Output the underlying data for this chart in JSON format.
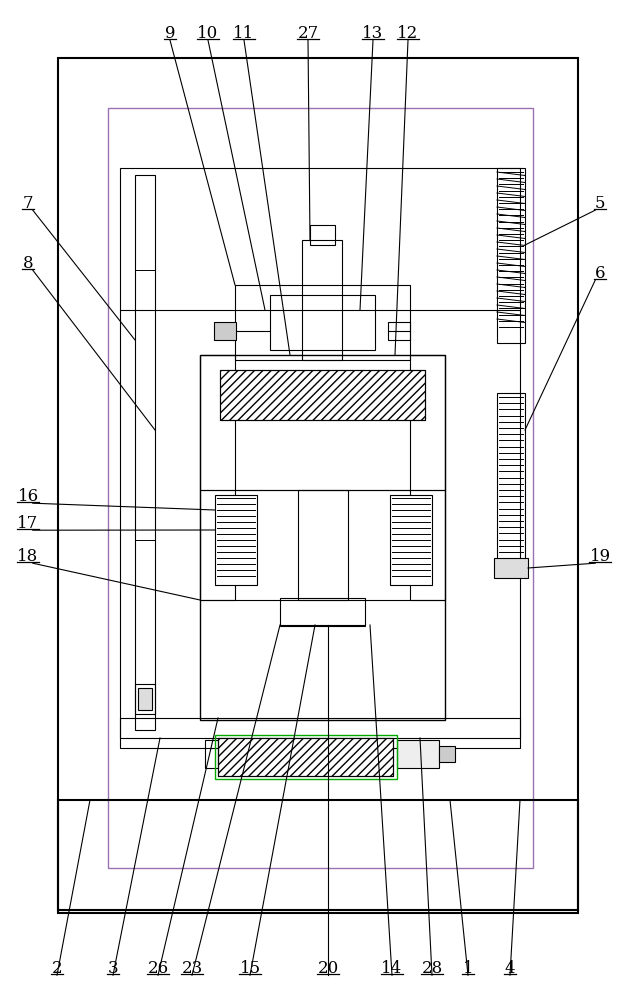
{
  "bg_color": "#ffffff",
  "lc": "#000000",
  "purple": "#9b72b0",
  "green": "#00aa00",
  "label_fs": 12,
  "top_labels": [
    [
      "9",
      170
    ],
    [
      "10",
      208
    ],
    [
      "11",
      244
    ],
    [
      "27",
      308
    ],
    [
      "13",
      372
    ],
    [
      "12",
      408
    ]
  ],
  "bottom_labels": [
    [
      "2",
      57
    ],
    [
      "3",
      113
    ],
    [
      "26",
      158
    ],
    [
      "23",
      192
    ],
    [
      "15",
      250
    ],
    [
      "20",
      328
    ],
    [
      "14",
      392
    ],
    [
      "28",
      432
    ],
    [
      "1",
      468
    ],
    [
      "4",
      510
    ]
  ],
  "left_labels": [
    [
      "7",
      195
    ],
    [
      "8",
      250
    ],
    [
      "16",
      488
    ],
    [
      "17",
      515
    ],
    [
      "18",
      548
    ]
  ],
  "right_labels": [
    [
      "5",
      195
    ],
    [
      "6",
      265
    ],
    [
      "19",
      548
    ]
  ]
}
